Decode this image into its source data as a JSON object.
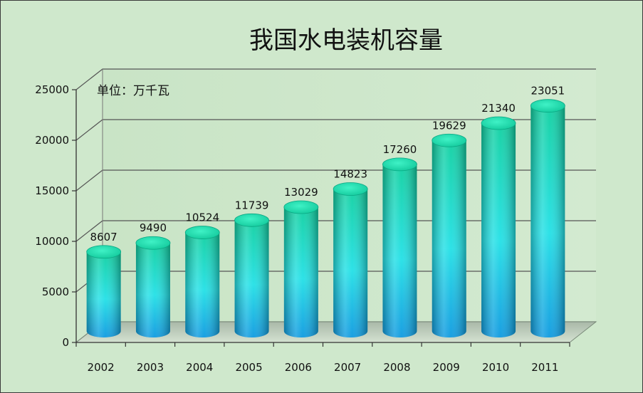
{
  "chart_data": {
    "type": "bar",
    "title": "我国水电装机容量",
    "unit_label": "单位：万千瓦",
    "categories": [
      "2002",
      "2003",
      "2004",
      "2005",
      "2006",
      "2007",
      "2008",
      "2009",
      "2010",
      "2011"
    ],
    "values": [
      8607,
      9490,
      10524,
      11739,
      13029,
      14823,
      17260,
      19629,
      21340,
      23051
    ],
    "ylim": [
      0,
      25000
    ],
    "yticks": [
      0,
      5000,
      10000,
      15000,
      20000,
      25000
    ],
    "yticks_labels": [
      "0",
      "5000",
      "10000",
      "15000",
      "20000",
      "25000"
    ],
    "grid": true,
    "legend": "none",
    "colors": {
      "background": "#cfe8cc",
      "bar_top": "#0fd5a0",
      "bar_mid": "#22e3e8",
      "bar_bottom": "#0e9fe0"
    }
  }
}
